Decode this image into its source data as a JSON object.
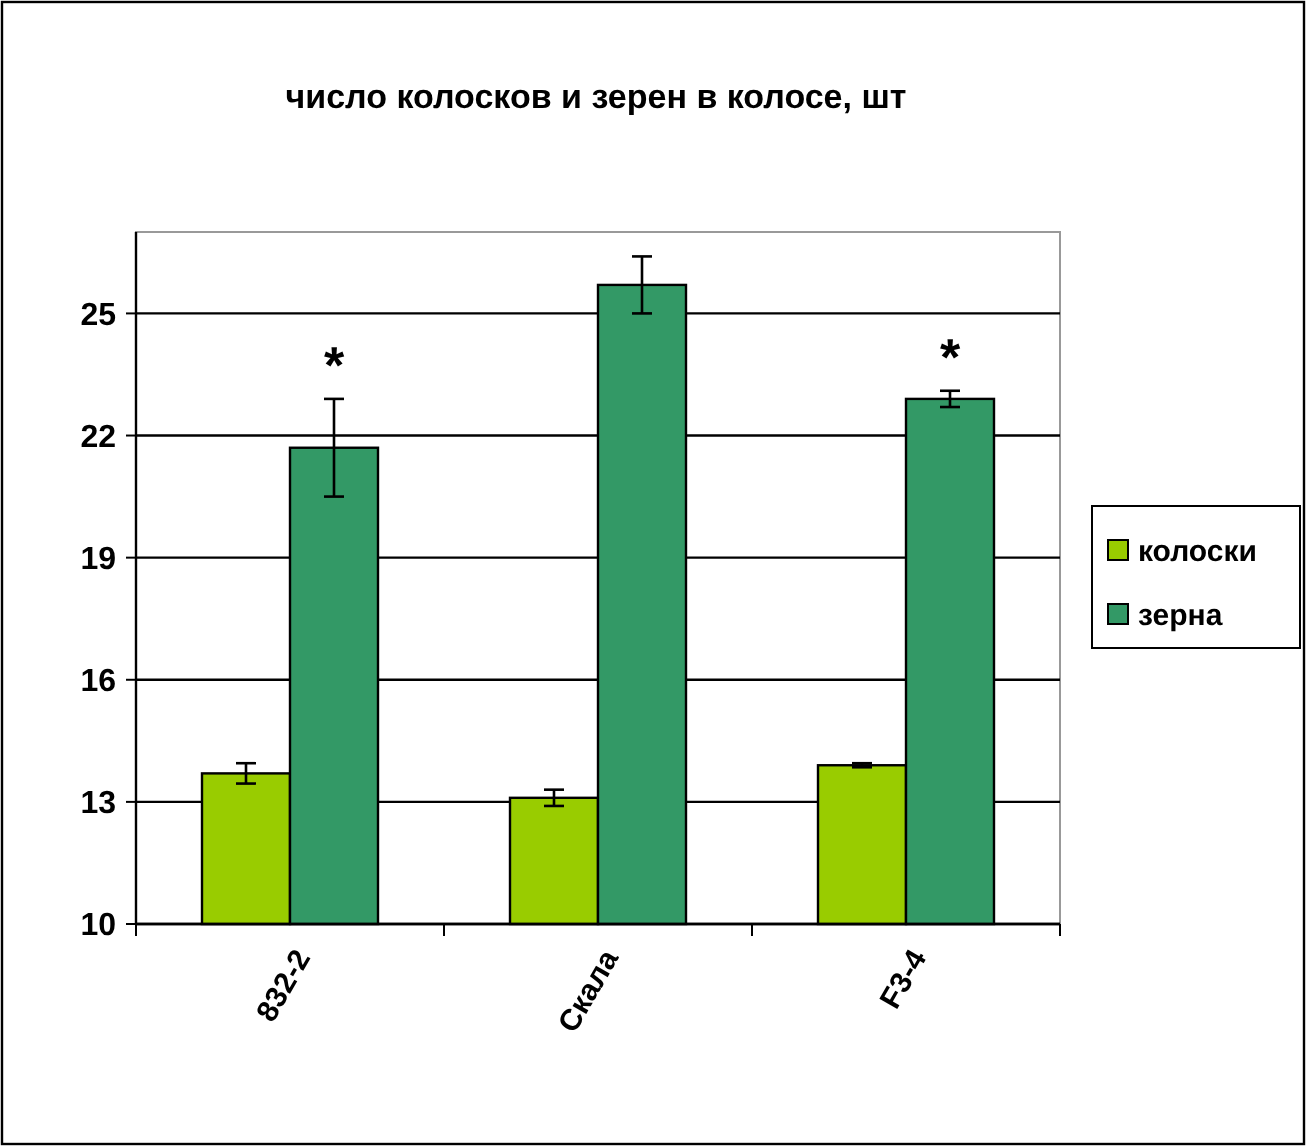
{
  "chart_data": {
    "type": "bar",
    "title": "число колосков и зерен в колосе, шт",
    "categories": [
      "832-2",
      "Скала",
      "F3-4"
    ],
    "series": [
      {
        "name": "колоски",
        "color": "#99cc00",
        "values": [
          13.7,
          13.1,
          13.9
        ],
        "errors": [
          0.25,
          0.2,
          0.05
        ]
      },
      {
        "name": "зерна",
        "color": "#339966",
        "values": [
          21.7,
          25.7,
          22.9
        ],
        "errors": [
          1.2,
          0.7,
          0.2
        ]
      }
    ],
    "ylim": [
      10,
      27
    ],
    "yticks": [
      10,
      13,
      16,
      19,
      22,
      25
    ],
    "grid": "y",
    "legend": "right",
    "annotations": [
      "*",
      "*"
    ]
  }
}
